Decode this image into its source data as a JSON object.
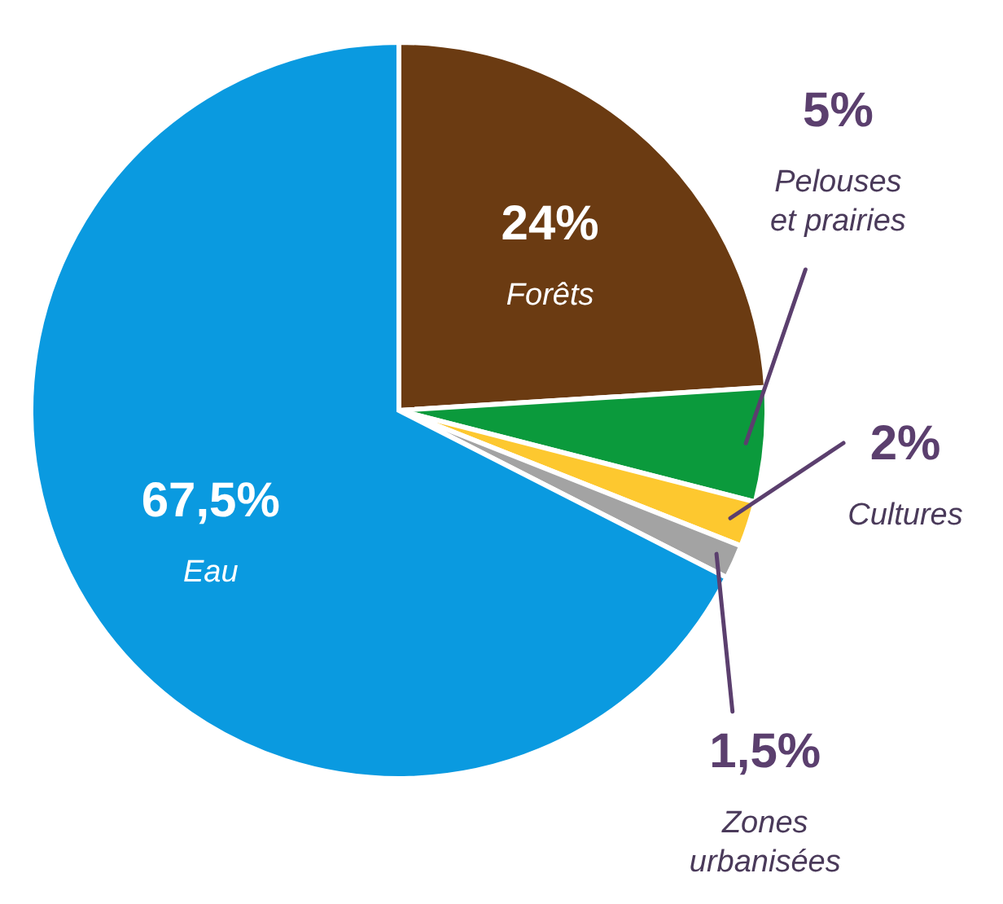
{
  "chart_data": {
    "type": "pie",
    "categories": [
      "Forêts",
      "Pelouses et prairies",
      "Cultures",
      "Zones urbanisées",
      "Eau"
    ],
    "values": [
      24,
      5,
      2,
      1.5,
      67.5
    ],
    "colors": [
      "#6b3b12",
      "#0b9a3c",
      "#fdc82f",
      "#a3a3a3",
      "#0a9ae0"
    ],
    "value_labels": [
      "24%",
      "5%",
      "2%",
      "1,5%",
      "67,5%"
    ]
  }
}
